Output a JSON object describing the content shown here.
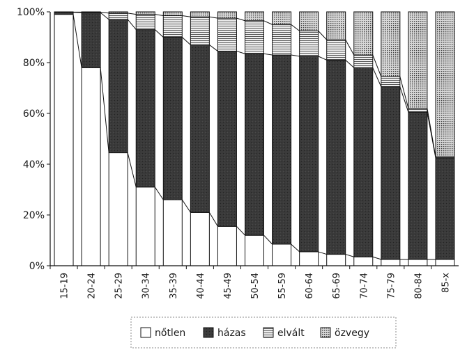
{
  "chart_data": {
    "type": "bar",
    "stacked": true,
    "percent": true,
    "title": "",
    "xlabel": "",
    "ylabel": "",
    "ylim": [
      0,
      100
    ],
    "yticks": [
      "0%",
      "20%",
      "40%",
      "60%",
      "80%",
      "100%"
    ],
    "grid": false,
    "legend_position": "bottom",
    "categories": [
      "15-19",
      "20-24",
      "25-29",
      "30-34",
      "35-39",
      "40-44",
      "45-49",
      "50-54",
      "55-59",
      "60-64",
      "65-69",
      "70-74",
      "75-79",
      "80-84",
      "85-x"
    ],
    "series": [
      {
        "name": "nőtlen",
        "values": [
          99,
          78,
          44.5,
          31,
          26,
          21,
          15.5,
          12,
          8.5,
          5.5,
          4.5,
          3.5,
          2.5,
          2.5,
          2.5
        ]
      },
      {
        "name": "házas",
        "values": [
          0.8,
          21.7,
          52.5,
          62,
          64,
          66,
          69,
          71.5,
          74.5,
          77,
          76.5,
          74.5,
          68,
          58,
          40
        ]
      },
      {
        "name": "elvált",
        "values": [
          0.1,
          0.2,
          2.5,
          6,
          8.5,
          11,
          13,
          13,
          12,
          10,
          8,
          5,
          4,
          1.5,
          0.5
        ]
      },
      {
        "name": "özvegy",
        "values": [
          0.1,
          0.1,
          0.5,
          1,
          1.5,
          2,
          2.5,
          3.5,
          5,
          7.5,
          11,
          17,
          25.5,
          38,
          57
        ]
      }
    ],
    "colors": {
      "nőtlen": "#ffffff",
      "házas": "#333333",
      "elvált": "#cfcfcf",
      "özvegy": "#9a9a9a",
      "axis": "#111111",
      "connector": "#111111"
    },
    "connector_lines": true
  }
}
